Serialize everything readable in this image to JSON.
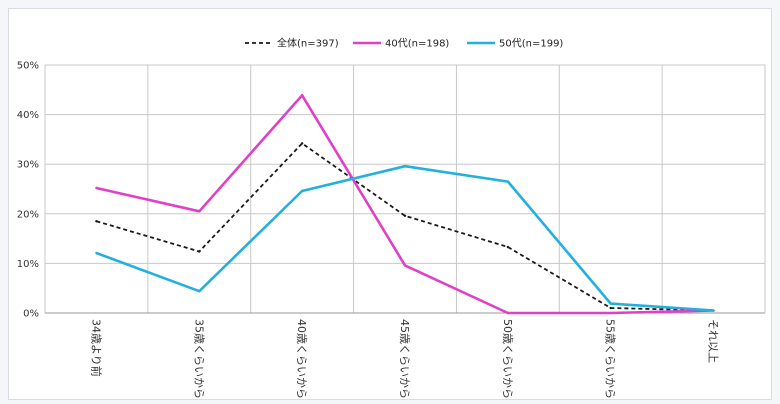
{
  "chart_data": {
    "type": "line",
    "title": "",
    "xlabel": "",
    "ylabel": "",
    "categories": [
      "34歳より前",
      "35歳くらいから",
      "40歳くらいから",
      "45歳くらいから",
      "50歳くらいから",
      "55歳くらいから",
      "それ以上"
    ],
    "ylim": [
      0,
      50
    ],
    "y_ticks": [
      "0%",
      "10%",
      "20%",
      "30%",
      "40%",
      "50%"
    ],
    "grid": true,
    "legend_position": "top-center",
    "series": [
      {
        "name": "全体(n=397)",
        "color": "#1a1a1a",
        "dash": true,
        "values": [
          18.5,
          12.4,
          34.2,
          19.6,
          13.3,
          1.0,
          0.5
        ]
      },
      {
        "name": "40代(n=198)",
        "color": "#e040c8",
        "dash": false,
        "values": [
          25.2,
          20.5,
          43.9,
          9.6,
          0.0,
          0.0,
          0.5
        ]
      },
      {
        "name": "50代(n=199)",
        "color": "#23b0dc",
        "dash": false,
        "values": [
          12.1,
          4.4,
          24.6,
          29.6,
          26.5,
          1.9,
          0.5
        ]
      }
    ]
  }
}
